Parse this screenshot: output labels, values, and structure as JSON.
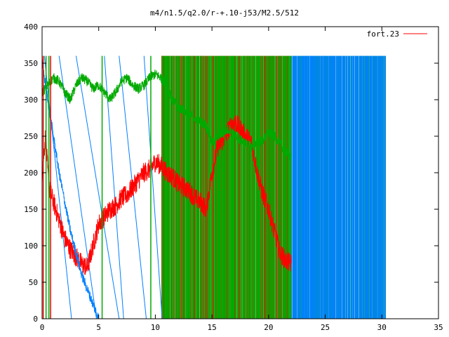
{
  "chart_data": {
    "type": "line",
    "title": "m4/n1.5/q2.0/r-+.10-j53/M2.5/512",
    "xlabel": "",
    "ylabel": "",
    "xlim": [
      0,
      35
    ],
    "ylim": [
      0,
      400
    ],
    "xticks": [
      0,
      5,
      10,
      15,
      20,
      25,
      30,
      35
    ],
    "yticks": [
      0,
      50,
      100,
      150,
      200,
      250,
      300,
      350,
      400
    ],
    "x_tick_labels": [
      "0",
      "5",
      "10",
      "15",
      "20",
      "25",
      "30",
      "35"
    ],
    "y_tick_labels": [
      "0",
      "50",
      "100",
      "150",
      "200",
      "250",
      "300",
      "350",
      "400"
    ],
    "grid": false,
    "legend_position": "top-right",
    "legend": [
      {
        "label": "fort.23",
        "color": "#ff0000"
      }
    ],
    "x_range_of_data": [
      0,
      30.3
    ],
    "wrap_value": 360,
    "series": [
      {
        "name": "fort.23",
        "color": "#ff0000",
        "x": [
          0,
          0.3,
          0.6,
          1.0,
          1.5,
          2.0,
          2.5,
          3.0,
          3.5,
          4.0,
          4.5,
          5.0,
          5.5,
          6.0,
          6.5,
          7.0,
          7.5,
          8.0,
          8.5,
          9.0,
          9.5,
          10.0,
          10.5,
          11.0,
          11.5,
          12.0,
          12.5,
          13.0,
          13.5,
          14.0,
          14.5,
          15.0,
          15.5,
          16.0,
          16.5,
          17.0,
          17.5,
          18.0,
          18.5,
          19.0,
          19.5,
          20.0,
          20.5,
          21.0,
          21.5,
          22.0
        ],
        "values": [
          200,
          250,
          180,
          160,
          135,
          110,
          95,
          85,
          75,
          70,
          100,
          130,
          140,
          150,
          155,
          165,
          170,
          180,
          190,
          200,
          205,
          215,
          210,
          200,
          195,
          185,
          180,
          175,
          165,
          160,
          150,
          200,
          235,
          245,
          260,
          270,
          260,
          250,
          240,
          200,
          170,
          150,
          120,
          90,
          80,
          75
        ]
      },
      {
        "name": "",
        "color": "#00aa00",
        "x": [
          0,
          0.5,
          1.0,
          1.5,
          2.0,
          2.5,
          3.0,
          3.5,
          4.0,
          4.5,
          5.0,
          5.5,
          6.0,
          6.5,
          7.0,
          7.5,
          8.0,
          8.5,
          9.0,
          9.5,
          10.0,
          10.5,
          11.0,
          11.5,
          12.0,
          12.5,
          13.0,
          13.5,
          14.0,
          14.5,
          15.0,
          15.5,
          16.0,
          16.5,
          17.0,
          17.5,
          18.0,
          18.5,
          19.0,
          19.5,
          20.0,
          20.5,
          21.0,
          21.5,
          22.0
        ],
        "values": [
          310,
          320,
          330,
          325,
          310,
          300,
          320,
          330,
          325,
          315,
          320,
          310,
          300,
          310,
          325,
          330,
          320,
          315,
          320,
          330,
          335,
          330,
          320,
          300,
          290,
          285,
          280,
          275,
          270,
          265,
          240,
          250,
          255,
          260,
          250,
          245,
          240,
          235,
          240,
          245,
          255,
          250,
          240,
          230,
          220
        ]
      },
      {
        "name": "",
        "color": "#0080ff",
        "x": [
          0,
          0.5,
          1.0,
          1.5,
          2.0,
          2.5,
          3.0,
          3.5,
          4.0,
          4.5,
          5.0
        ],
        "values": [
          350,
          300,
          250,
          200,
          160,
          120,
          90,
          60,
          40,
          20,
          0
        ]
      }
    ],
    "dense_band_segments": [
      {
        "x_start": 10.5,
        "x_end": 22.0,
        "color": "#ff0000"
      },
      {
        "x_start": 10.5,
        "x_end": 22.0,
        "color": "#00aa00"
      },
      {
        "x_start": 22.0,
        "x_end": 30.3,
        "color": "#00a080"
      },
      {
        "x_start": 22.0,
        "x_end": 30.3,
        "color": "#0080ff"
      }
    ]
  }
}
